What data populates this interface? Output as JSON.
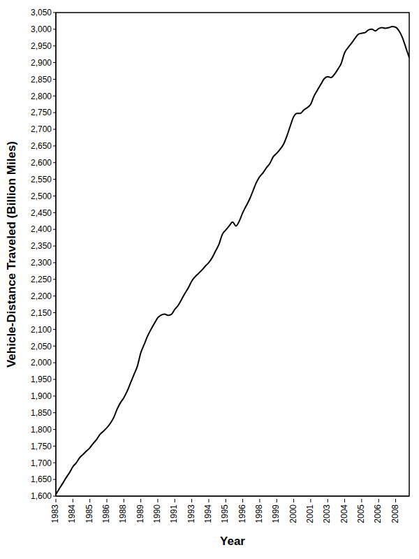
{
  "chart_data": {
    "type": "line",
    "x_label": "Year",
    "y_label": "Vehicle-Distance Traveled (Billion Miles)",
    "categories": [
      "1983",
      null,
      null,
      null,
      null,
      "1984",
      null,
      null,
      null,
      null,
      "1985",
      null,
      null,
      null,
      null,
      "1986",
      null,
      null,
      null,
      null,
      "1988",
      null,
      null,
      null,
      null,
      "1989",
      null,
      null,
      null,
      null,
      "1990",
      null,
      null,
      null,
      null,
      "1991",
      null,
      null,
      null,
      null,
      "1993",
      null,
      null,
      null,
      null,
      "1994",
      null,
      null,
      null,
      null,
      "1995",
      null,
      null,
      null,
      null,
      "1996",
      null,
      null,
      null,
      null,
      "1998",
      null,
      null,
      null,
      null,
      "1999",
      null,
      null,
      null,
      null,
      "2000",
      null,
      null,
      null,
      null,
      "2001",
      null,
      null,
      null,
      null,
      "2003",
      null,
      null,
      null,
      null,
      "2004",
      null,
      null,
      null,
      null,
      "2005",
      null,
      null,
      null,
      null,
      "2006",
      null,
      null,
      null,
      null,
      "2008",
      null,
      null,
      null,
      null
    ],
    "values": [
      1605,
      1622,
      1638,
      1655,
      1670,
      1688,
      1700,
      1715,
      1725,
      1735,
      1745,
      1758,
      1770,
      1785,
      1795,
      1805,
      1818,
      1835,
      1860,
      1880,
      1895,
      1915,
      1940,
      1965,
      1990,
      2030,
      2055,
      2080,
      2100,
      2118,
      2135,
      2143,
      2146,
      2142,
      2145,
      2160,
      2172,
      2190,
      2208,
      2225,
      2245,
      2258,
      2268,
      2278,
      2290,
      2300,
      2315,
      2335,
      2355,
      2385,
      2398,
      2410,
      2422,
      2410,
      2425,
      2450,
      2470,
      2490,
      2515,
      2540,
      2558,
      2570,
      2585,
      2598,
      2618,
      2628,
      2640,
      2655,
      2680,
      2710,
      2738,
      2748,
      2748,
      2758,
      2765,
      2775,
      2800,
      2818,
      2835,
      2852,
      2858,
      2855,
      2865,
      2880,
      2898,
      2930,
      2945,
      2958,
      2972,
      2985,
      2988,
      2990,
      2998,
      3000,
      2995,
      3002,
      3005,
      3003,
      3005,
      3008,
      3006,
      2995,
      2975,
      2945,
      2915
    ],
    "color": "#000000",
    "ylim": [
      1600,
      3050
    ],
    "yticks": [
      {
        "value": 1600,
        "label": "1,600"
      },
      {
        "value": 1650,
        "label": "1,650"
      },
      {
        "value": 1700,
        "label": "1,700"
      },
      {
        "value": 1750,
        "label": "1,750"
      },
      {
        "value": 1800,
        "label": "1,800"
      },
      {
        "value": 1850,
        "label": "1,850"
      },
      {
        "value": 1900,
        "label": "1,900"
      },
      {
        "value": 1950,
        "label": "1,950"
      },
      {
        "value": 2000,
        "label": "2,000"
      },
      {
        "value": 2050,
        "label": "2,050"
      },
      {
        "value": 2100,
        "label": "2,100"
      },
      {
        "value": 2150,
        "label": "2,150"
      },
      {
        "value": 2200,
        "label": "2,200"
      },
      {
        "value": 2250,
        "label": "2,250"
      },
      {
        "value": 2300,
        "label": "2,300"
      },
      {
        "value": 2350,
        "label": "2,350"
      },
      {
        "value": 2400,
        "label": "2,400"
      },
      {
        "value": 2450,
        "label": "2,450"
      },
      {
        "value": 2500,
        "label": "2,500"
      },
      {
        "value": 2550,
        "label": "2,550"
      },
      {
        "value": 2600,
        "label": "2,600"
      },
      {
        "value": 2650,
        "label": "2,650"
      },
      {
        "value": 2700,
        "label": "2,700"
      },
      {
        "value": 2750,
        "label": "2,750"
      },
      {
        "value": 2800,
        "label": "2,800"
      },
      {
        "value": 2850,
        "label": "2,850"
      },
      {
        "value": 2900,
        "label": "2,900"
      },
      {
        "value": 2950,
        "label": "2,950"
      },
      {
        "value": 3000,
        "label": "3,000"
      },
      {
        "value": 3050,
        "label": "3,050"
      }
    ],
    "grid": false
  }
}
